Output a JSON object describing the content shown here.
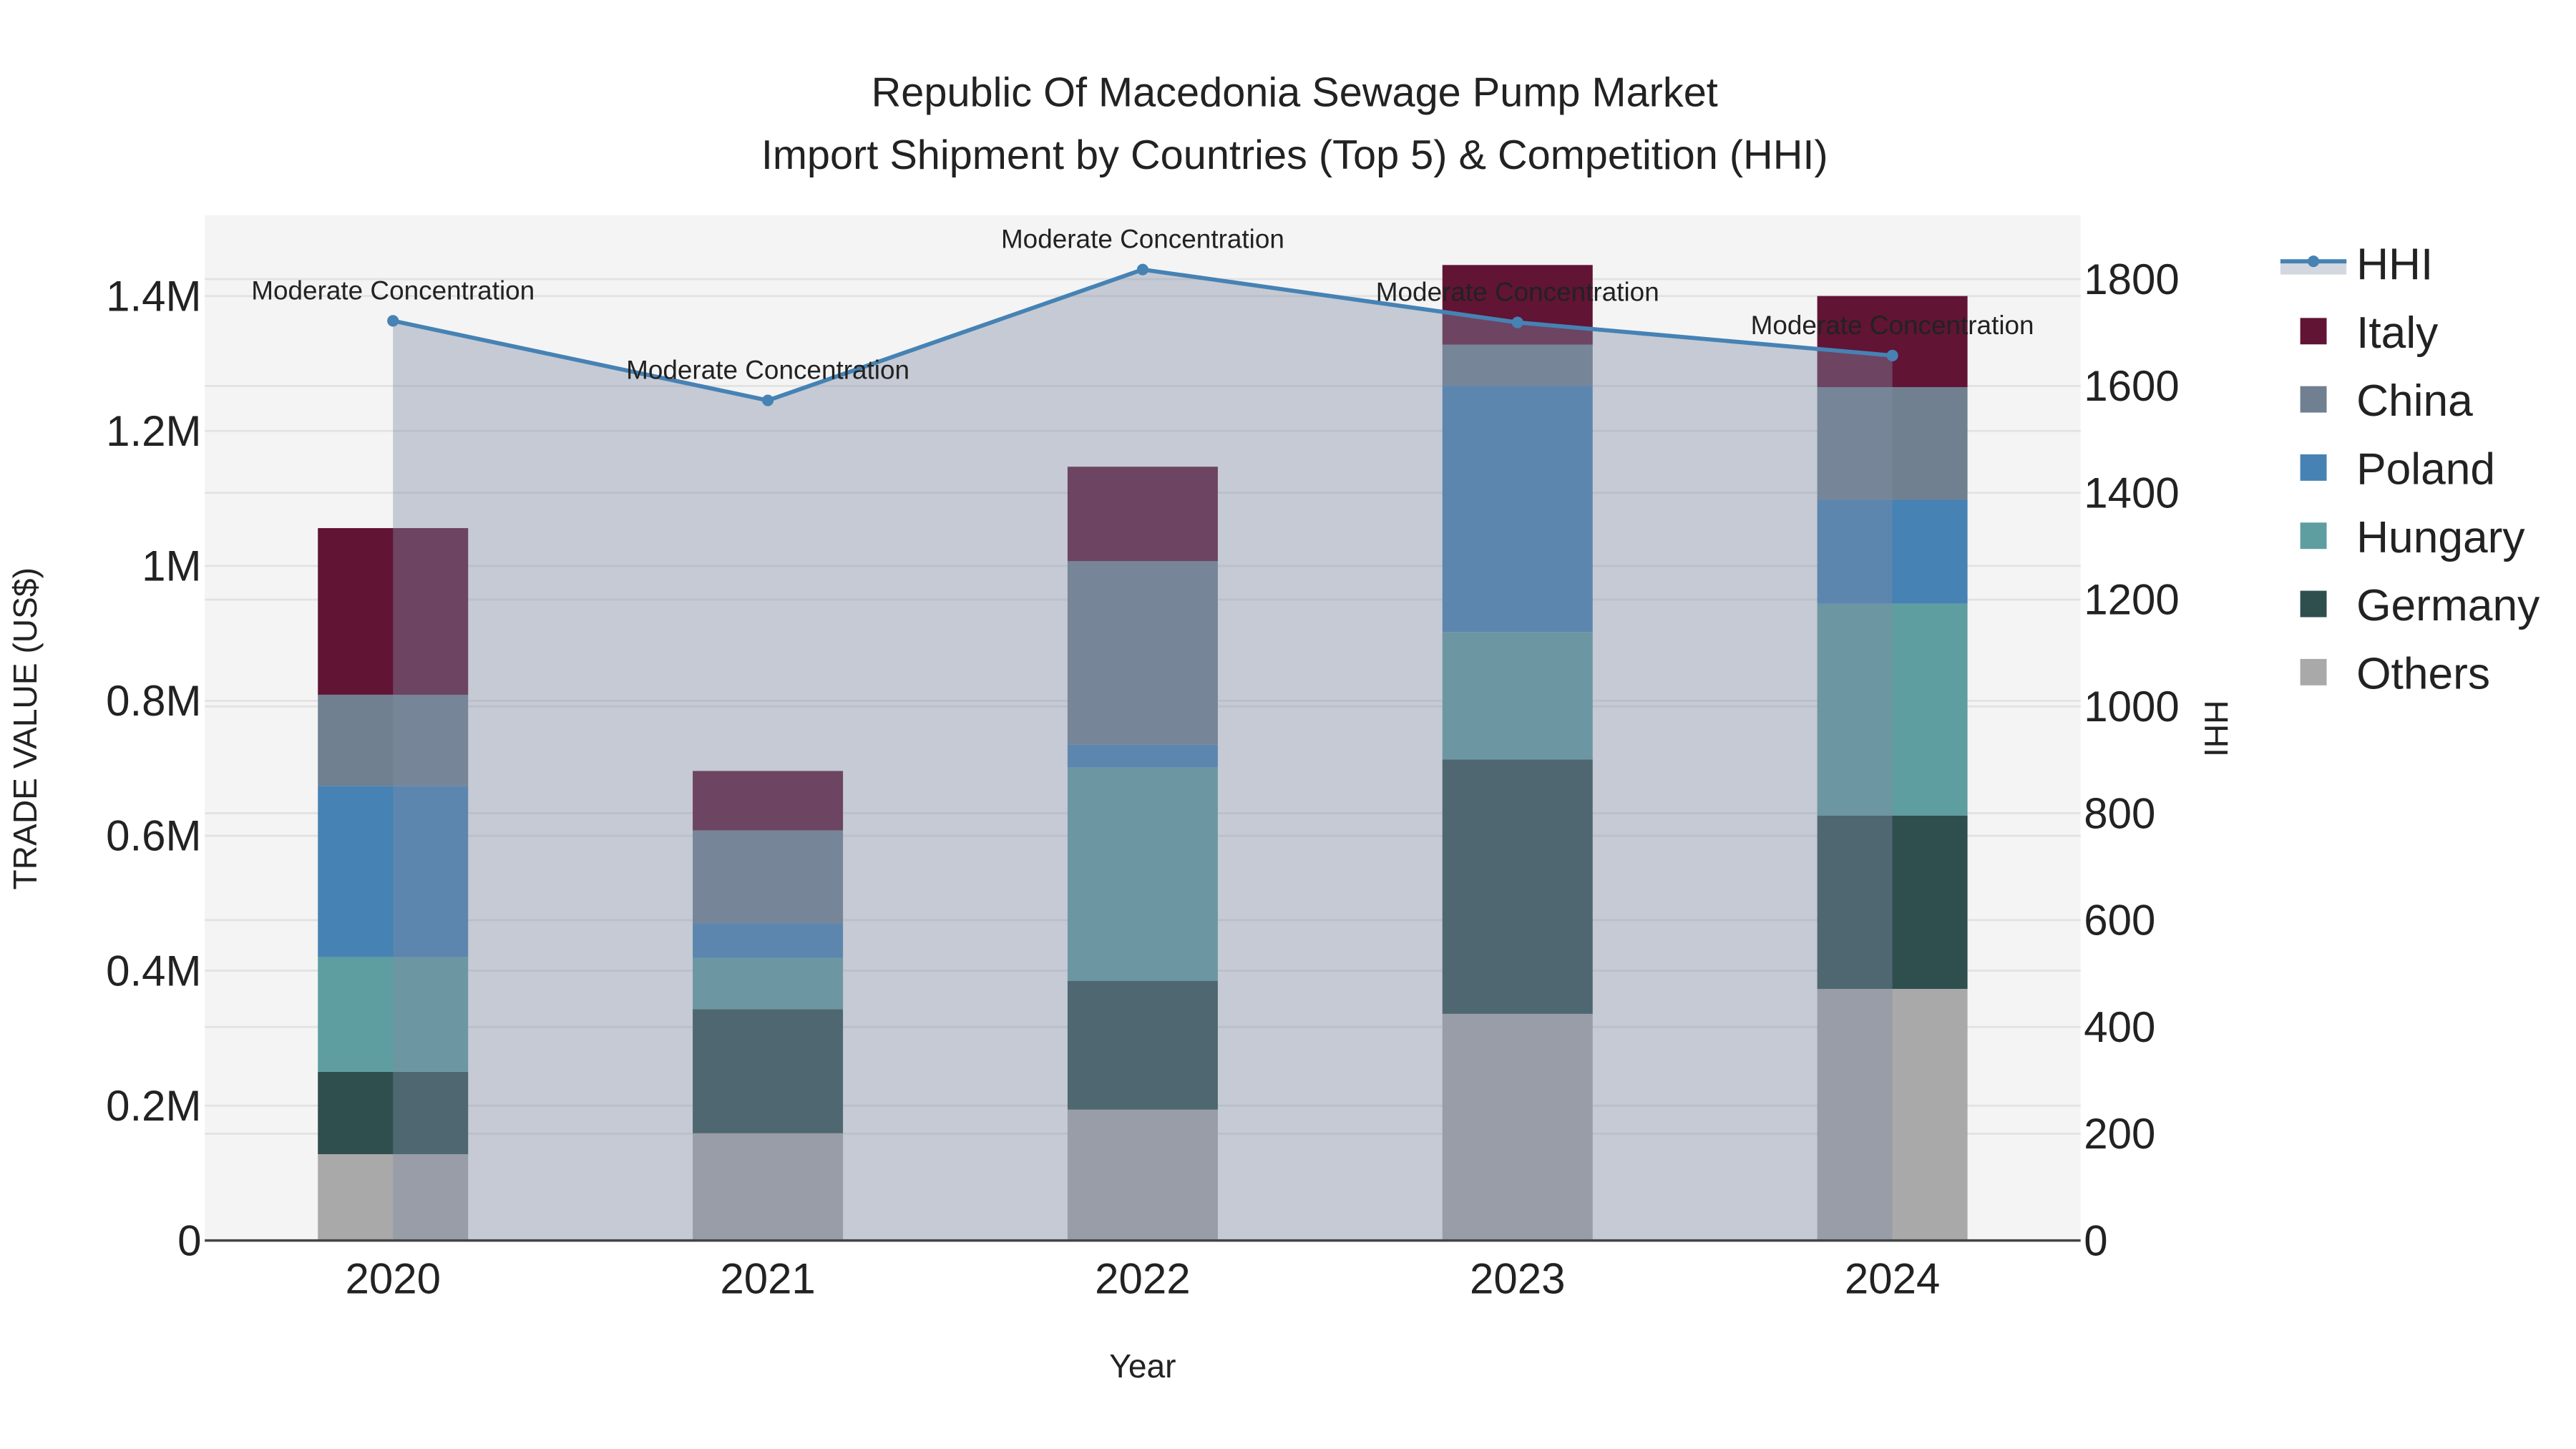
{
  "chart_data": {
    "type": "bar",
    "title": "Republic Of Macedonia Sewage Pump Market",
    "subtitle": "Import Shipment by Countries (Top 5) & Competition (HHI)",
    "xlabel": "Year",
    "ylabel": "TRADE VALUE (US$)",
    "y2label": "HHI",
    "categories": [
      "2020",
      "2021",
      "2022",
      "2023",
      "2024"
    ],
    "ylim": [
      0,
      1520000
    ],
    "y2lim": [
      0,
      1920
    ],
    "yticks": [
      {
        "v": 0,
        "label": "0"
      },
      {
        "v": 200000,
        "label": "0.2M"
      },
      {
        "v": 400000,
        "label": "0.4M"
      },
      {
        "v": 600000,
        "label": "0.6M"
      },
      {
        "v": 800000,
        "label": "0.8M"
      },
      {
        "v": 1000000,
        "label": "1M"
      },
      {
        "v": 1200000,
        "label": "1.2M"
      },
      {
        "v": 1400000,
        "label": "1.4M"
      }
    ],
    "y2ticks": [
      {
        "v": 0,
        "label": "0"
      },
      {
        "v": 200,
        "label": "200"
      },
      {
        "v": 400,
        "label": "400"
      },
      {
        "v": 600,
        "label": "600"
      },
      {
        "v": 800,
        "label": "800"
      },
      {
        "v": 1000,
        "label": "1000"
      },
      {
        "v": 1200,
        "label": "1200"
      },
      {
        "v": 1400,
        "label": "1400"
      },
      {
        "v": 1600,
        "label": "1600"
      },
      {
        "v": 1800,
        "label": "1800"
      }
    ],
    "grid": true,
    "legend_position": "right",
    "series": [
      {
        "name": "Others",
        "color": "#a9a9a9",
        "values": [
          128000,
          159000,
          194000,
          336000,
          373000
        ]
      },
      {
        "name": "Germany",
        "color": "#2f4f4f",
        "values": [
          122000,
          184000,
          191000,
          377000,
          257000
        ]
      },
      {
        "name": "Hungary",
        "color": "#5f9ea0",
        "values": [
          170000,
          76000,
          316000,
          189000,
          314000
        ]
      },
      {
        "name": "Poland",
        "color": "#4682b4",
        "values": [
          254000,
          51000,
          34000,
          365000,
          154000
        ]
      },
      {
        "name": "China",
        "color": "#708090",
        "values": [
          135000,
          138000,
          272000,
          61000,
          167000
        ]
      },
      {
        "name": "Italy",
        "color": "#611434",
        "values": [
          247000,
          88000,
          140000,
          118000,
          135000
        ]
      }
    ],
    "hhi": {
      "name": "HHI",
      "color": "#4682b4",
      "values": [
        1722,
        1573,
        1818,
        1719,
        1657
      ],
      "annotations": [
        "Moderate Concentration",
        "Moderate Concentration",
        "Moderate Concentration",
        "Moderate Concentration",
        "Moderate Concentration"
      ]
    },
    "legend_order": [
      "HHI",
      "Italy",
      "China",
      "Poland",
      "Hungary",
      "Germany",
      "Others"
    ]
  }
}
